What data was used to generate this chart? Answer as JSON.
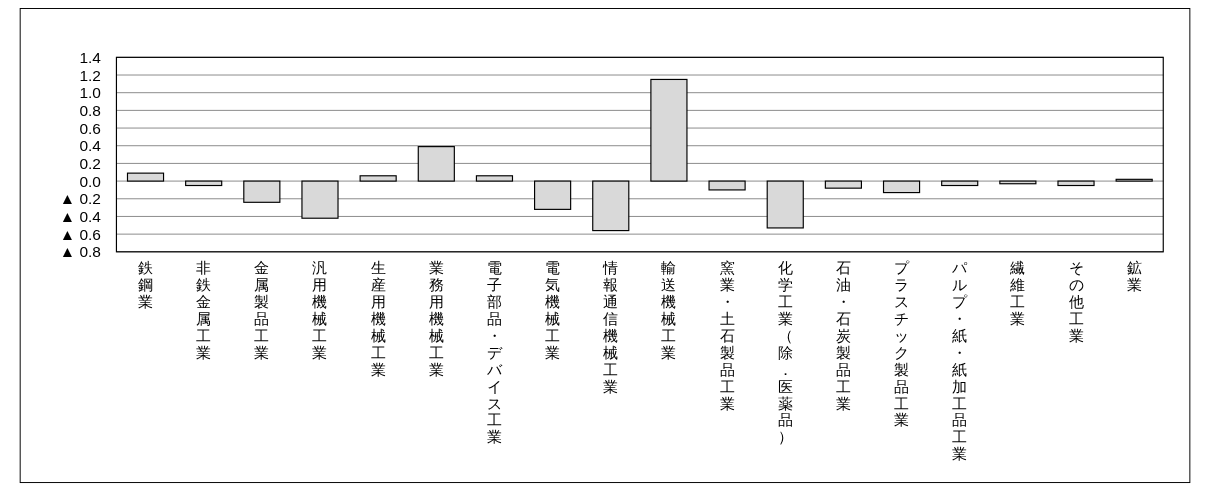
{
  "chart_data": {
    "type": "bar",
    "categories": [
      "鉄鋼業",
      "非鉄金属工業",
      "金属製品工業",
      "汎用機械工業",
      "生産用機械工業",
      "業務用機械工業",
      "電子部品・デバイス工業",
      "電気機械工業",
      "情報通信機械工業",
      "輸送機械工業",
      "窯業・土石製品工業",
      "化学工業（除．医薬品）",
      "石油・石炭製品工業",
      "プラスチック製品工業",
      "パルプ・紙・紙加工品工業",
      "繊維工業",
      "その他工業",
      "鉱業"
    ],
    "values": [
      0.09,
      -0.05,
      -0.24,
      -0.42,
      0.06,
      0.39,
      0.06,
      -0.32,
      -0.56,
      1.15,
      -0.1,
      -0.53,
      -0.08,
      -0.13,
      -0.05,
      -0.03,
      -0.05,
      0.02
    ],
    "color": "#d9d9d9",
    "ylim": [
      -0.8,
      1.4
    ],
    "yticks": [
      {
        "value": -0.8,
        "label": "▲ 0.8"
      },
      {
        "value": -0.6,
        "label": "▲ 0.6"
      },
      {
        "value": -0.4,
        "label": "▲ 0.4"
      },
      {
        "value": -0.2,
        "label": "▲ 0.2"
      },
      {
        "value": 0,
        "label": "0.0"
      },
      {
        "value": 0.2,
        "label": "0.2"
      },
      {
        "value": 0.4,
        "label": "0.4"
      },
      {
        "value": 0.6,
        "label": "0.6"
      },
      {
        "value": 0.8,
        "label": "0.8"
      },
      {
        "value": 1,
        "label": "1.0"
      },
      {
        "value": 1.2,
        "label": "1.2"
      },
      1.4
    ],
    "grid": "y"
  }
}
